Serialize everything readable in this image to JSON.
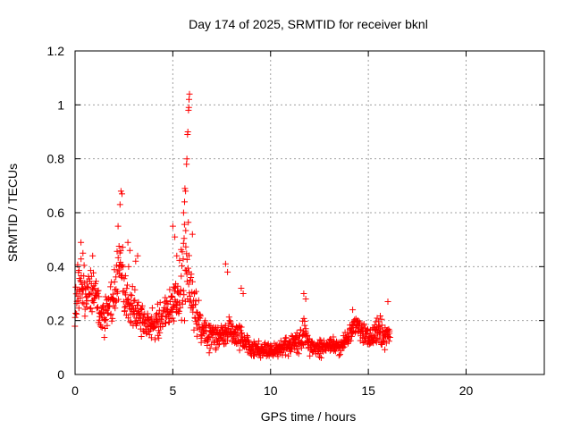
{
  "chart_data": {
    "type": "scatter",
    "title": "Day 174 of 2025, SRMTID for receiver bknl",
    "xlabel": "GPS time / hours",
    "ylabel": "SRMTID / TECUs",
    "xlim": [
      0,
      24
    ],
    "ylim": [
      0,
      1.2
    ],
    "xticks": [
      0,
      5,
      10,
      15,
      20
    ],
    "yticks": [
      0,
      0.2,
      0.4,
      0.6,
      0.8,
      1,
      1.2
    ],
    "xtick_labels": [
      "0",
      "5",
      "10",
      "15",
      "20"
    ],
    "ytick_labels": [
      "0",
      "0.2",
      "0.4",
      "0.6",
      "0.8",
      "1",
      "1.2"
    ],
    "grid": true,
    "marker": "+",
    "marker_color": "#ff0000",
    "series": [
      {
        "name": "SRMTID",
        "profile": [
          [
            0.0,
            0.28,
            0.09
          ],
          [
            0.3,
            0.33,
            0.1
          ],
          [
            0.6,
            0.32,
            0.09
          ],
          [
            1.0,
            0.3,
            0.08
          ],
          [
            1.3,
            0.22,
            0.06
          ],
          [
            1.7,
            0.23,
            0.07
          ],
          [
            2.0,
            0.3,
            0.1
          ],
          [
            2.3,
            0.38,
            0.13
          ],
          [
            2.6,
            0.3,
            0.1
          ],
          [
            3.0,
            0.24,
            0.08
          ],
          [
            3.5,
            0.19,
            0.05
          ],
          [
            4.0,
            0.19,
            0.05
          ],
          [
            4.5,
            0.22,
            0.06
          ],
          [
            5.0,
            0.26,
            0.08
          ],
          [
            5.3,
            0.27,
            0.09
          ],
          [
            5.6,
            0.42,
            0.18
          ],
          [
            5.9,
            0.32,
            0.12
          ],
          [
            6.2,
            0.22,
            0.07
          ],
          [
            6.5,
            0.17,
            0.05
          ],
          [
            7.0,
            0.15,
            0.05
          ],
          [
            7.5,
            0.15,
            0.05
          ],
          [
            8.0,
            0.16,
            0.05
          ],
          [
            8.5,
            0.14,
            0.04
          ],
          [
            9.0,
            0.1,
            0.03
          ],
          [
            9.5,
            0.09,
            0.03
          ],
          [
            10.0,
            0.09,
            0.03
          ],
          [
            10.5,
            0.1,
            0.03
          ],
          [
            11.0,
            0.11,
            0.03
          ],
          [
            11.5,
            0.12,
            0.04
          ],
          [
            11.8,
            0.16,
            0.06
          ],
          [
            12.0,
            0.1,
            0.03
          ],
          [
            12.5,
            0.1,
            0.03
          ],
          [
            13.0,
            0.11,
            0.03
          ],
          [
            13.5,
            0.1,
            0.03
          ],
          [
            14.0,
            0.14,
            0.04
          ],
          [
            14.3,
            0.19,
            0.03
          ],
          [
            14.6,
            0.16,
            0.04
          ],
          [
            15.0,
            0.14,
            0.04
          ],
          [
            15.5,
            0.16,
            0.05
          ],
          [
            16.1,
            0.14,
            0.05
          ]
        ],
        "peaks": [
          [
            0.3,
            0.49
          ],
          [
            0.4,
            0.45
          ],
          [
            0.9,
            0.44
          ],
          [
            2.2,
            0.55
          ],
          [
            2.3,
            0.63
          ],
          [
            2.35,
            0.68
          ],
          [
            2.4,
            0.67
          ],
          [
            2.7,
            0.49
          ],
          [
            2.8,
            0.46
          ],
          [
            3.1,
            0.42
          ],
          [
            3.2,
            0.44
          ],
          [
            5.0,
            0.55
          ],
          [
            5.1,
            0.51
          ],
          [
            5.2,
            0.44
          ],
          [
            5.55,
            0.6
          ],
          [
            5.6,
            0.64
          ],
          [
            5.62,
            0.69
          ],
          [
            5.65,
            0.68
          ],
          [
            5.7,
            0.78
          ],
          [
            5.72,
            0.8
          ],
          [
            5.75,
            0.89
          ],
          [
            5.77,
            0.9
          ],
          [
            5.8,
            0.98
          ],
          [
            5.82,
            0.99
          ],
          [
            5.83,
            1.02
          ],
          [
            5.85,
            1.04
          ],
          [
            6.0,
            0.52
          ],
          [
            7.7,
            0.41
          ],
          [
            7.8,
            0.38
          ],
          [
            8.5,
            0.32
          ],
          [
            8.6,
            0.3
          ],
          [
            11.7,
            0.3
          ],
          [
            11.8,
            0.28
          ],
          [
            14.2,
            0.24
          ],
          [
            16.0,
            0.27
          ]
        ]
      }
    ]
  }
}
